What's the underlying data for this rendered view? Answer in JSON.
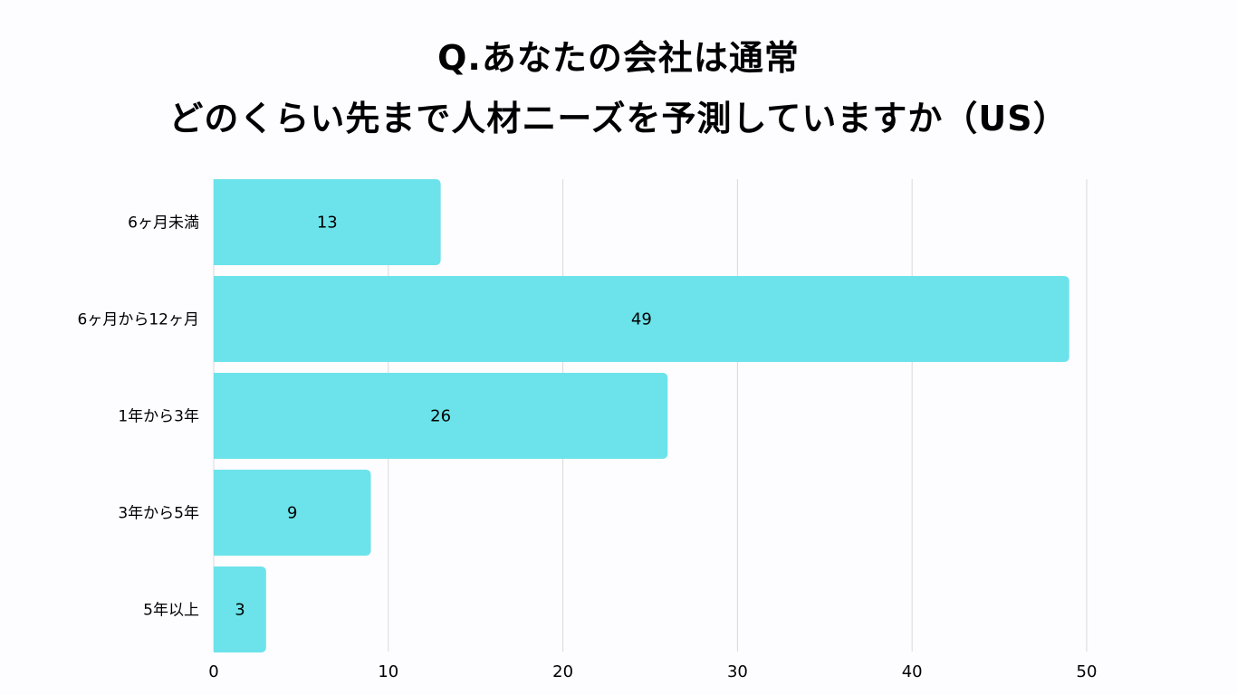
{
  "chart_data": {
    "type": "bar",
    "orientation": "horizontal",
    "title": [
      "Q.あなたの会社は通常",
      "どのくらい先まで人材ニーズを予測していますか（US）"
    ],
    "categories": [
      "6ヶ月未満",
      "6ヶ月から12ヶ月",
      "1年から3年",
      "3年から5年",
      "5年以上"
    ],
    "values": [
      13,
      49,
      26,
      9,
      3
    ],
    "data_labels": [
      "13",
      "49",
      "26",
      "9",
      "3"
    ],
    "xlim": [
      0,
      50
    ],
    "xticks": [
      0,
      10,
      20,
      30,
      40,
      50
    ],
    "xlabel": "",
    "ylabel": "",
    "grid": "vertical",
    "colors": {
      "bar": "#6ce3ea",
      "grid": "#d9d9d9",
      "background": "#fdfcff"
    }
  }
}
